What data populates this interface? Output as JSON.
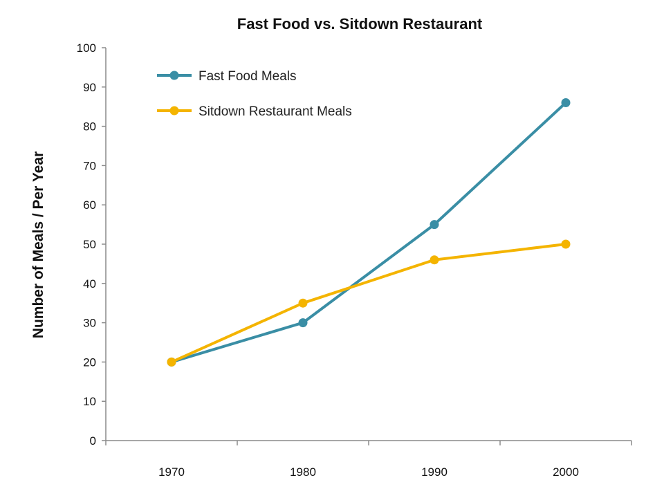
{
  "chart_data": {
    "type": "line",
    "title": "Fast Food vs. Sitdown Restaurant",
    "xlabel": "",
    "ylabel": "Number of Meals / Per Year",
    "categories": [
      "1970",
      "1980",
      "1990",
      "2000"
    ],
    "ylim": [
      0,
      100
    ],
    "yticks": [
      0,
      10,
      20,
      30,
      40,
      50,
      60,
      70,
      80,
      90,
      100
    ],
    "grid": false,
    "legend_position": "top-left",
    "series": [
      {
        "name": "Fast Food Meals",
        "values": [
          20,
          30,
          55,
          86
        ],
        "color": "#3a8ea5"
      },
      {
        "name": "Sitdown Restaurant  Meals",
        "values": [
          20,
          35,
          46,
          50
        ],
        "color": "#f4b400"
      }
    ]
  }
}
